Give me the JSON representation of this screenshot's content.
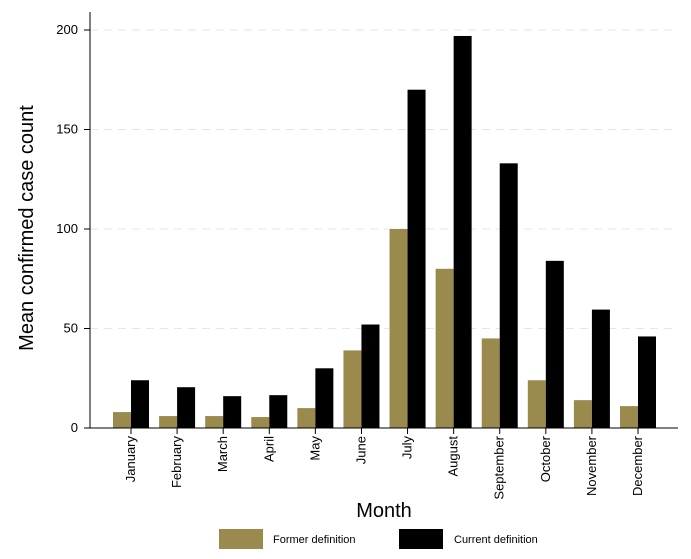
{
  "chart_data": {
    "type": "bar",
    "title": "",
    "xlabel": "Month",
    "ylabel": "Mean confirmed case count",
    "ylim": [
      0,
      200
    ],
    "yticks": [
      0,
      50,
      100,
      150,
      200
    ],
    "grid": true,
    "legend_position": "bottom",
    "categories": [
      "January",
      "February",
      "March",
      "April",
      "May",
      "June",
      "July",
      "August",
      "September",
      "October",
      "November",
      "December"
    ],
    "series": [
      {
        "name": "Former definition",
        "color": "#9b8a4d",
        "values": [
          8,
          6,
          6,
          5.5,
          10,
          39,
          100,
          80,
          45,
          24,
          14,
          11
        ]
      },
      {
        "name": "Current definition",
        "color": "#000000",
        "values": [
          24,
          20.5,
          16,
          16.5,
          30,
          52,
          170,
          197,
          133,
          84,
          59.5,
          46
        ]
      }
    ]
  }
}
